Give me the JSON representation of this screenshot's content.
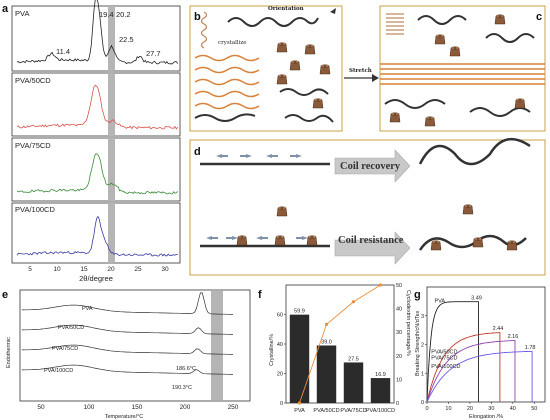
{
  "panel_labels": {
    "a": "a",
    "b": "b",
    "c": "c",
    "d": "d",
    "e": "e",
    "f": "f",
    "g": "g"
  },
  "xrd": {
    "xlabel": "2θ/degree",
    "xticks": [
      "5",
      "10",
      "15",
      "20",
      "25",
      "30"
    ],
    "samples": [
      "PVA",
      "PVA/50CD",
      "PVA/75CD",
      "PVA/100CD"
    ],
    "peaks": {
      "p1": "11.4",
      "p2": "19.4",
      "p3": "20.2",
      "p4": "22.5",
      "p5": "27.7"
    },
    "colors": [
      "#222222",
      "#d9534f",
      "#3a8a3a",
      "#3a3aa0"
    ]
  },
  "schematic": {
    "orientation_label": "Orientation",
    "crystallize_label": "crystallize",
    "stretch_label": "Stretch",
    "coil_recovery_label": "Coil recovery",
    "coil_resistance_label": "Coil resistance"
  },
  "dsc": {
    "ylabel": "Endothermic",
    "xlabel": "Temperature/°C",
    "xticks": [
      "50",
      "100",
      "150",
      "200",
      "250"
    ],
    "samples": [
      "PVA",
      "PVA/50CD",
      "PVA/75CD",
      "PVA/100CD"
    ],
    "annotations": [
      "186.6°C",
      "190.3°C"
    ]
  },
  "chart_data": [
    {
      "type": "bar",
      "title": "",
      "categories": [
        "PVA",
        "PVA/50CD",
        "PVA/75CD",
        "PVA/100CD"
      ],
      "values": [
        59.9,
        39.0,
        27.5,
        16.9
      ],
      "value_labels": [
        "59.9",
        "39.0",
        "27.5",
        "16.9"
      ],
      "ylabel": "Crystalline/%",
      "ylim": [
        0,
        80
      ],
      "yticks": [
        "0",
        "20",
        "40",
        "60"
      ],
      "secondary": {
        "ylabel": "Cyclodextrin percentage/%",
        "yticks": [
          "0",
          "10",
          "20",
          "30",
          "40",
          "50"
        ],
        "ylim": [
          0,
          50
        ],
        "values": [
          0,
          33.3,
          42.9,
          50.0
        ],
        "color": "#e8903a"
      }
    },
    {
      "type": "line",
      "title": "",
      "xlabel": "Elongation /%",
      "ylabel": "Breaking Strength/cN/dTex",
      "xticks": [
        "0",
        "10",
        "20",
        "30",
        "40",
        "50"
      ],
      "yticks": [
        "0",
        "1",
        "2",
        "3"
      ],
      "xlim": [
        0,
        55
      ],
      "ylim": [
        0,
        4
      ],
      "series": [
        {
          "name": "PVA",
          "break_elongation": 24,
          "break_strength": 3.49,
          "label": "3.49",
          "color": "#222222"
        },
        {
          "name": "PVA/50CD",
          "break_elongation": 34,
          "break_strength": 2.44,
          "label": "2.44",
          "color": "#c0392b"
        },
        {
          "name": "PVA/75CD",
          "break_elongation": 41,
          "break_strength": 2.16,
          "label": "2.16",
          "color": "#8e44ad"
        },
        {
          "name": "PVA/100CD",
          "break_elongation": 49,
          "break_strength": 1.78,
          "label": "1.78",
          "color": "#6c5ce7"
        }
      ]
    }
  ]
}
